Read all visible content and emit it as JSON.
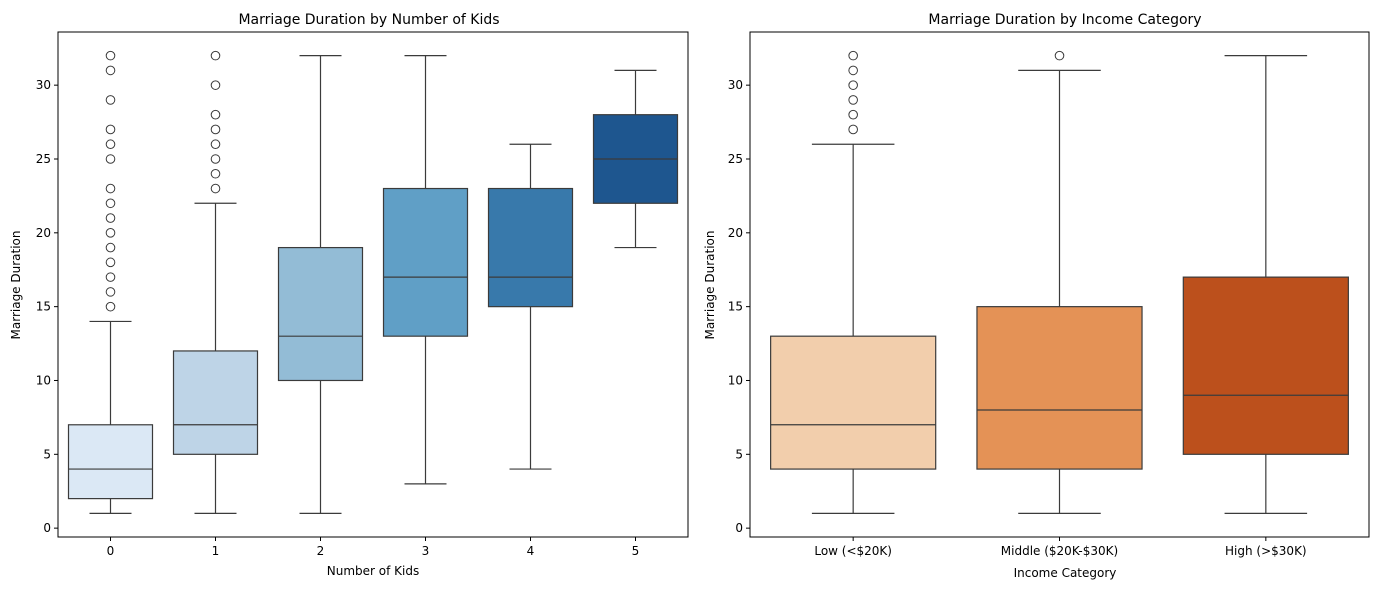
{
  "chart_data": [
    {
      "type": "box",
      "title": "Marriage Duration by Number of Kids",
      "xlabel": "Number of Kids",
      "ylabel": "Marriage Duration",
      "ylim": [
        -0.6,
        33.6
      ],
      "yticks": [
        0,
        5,
        10,
        15,
        20,
        25,
        30
      ],
      "categories": [
        "0",
        "1",
        "2",
        "3",
        "4",
        "5"
      ],
      "boxes": [
        {
          "whislo": 1,
          "q1": 2,
          "med": 4,
          "q3": 7,
          "whishi": 14,
          "fliers": [
            15,
            16,
            17,
            18,
            19,
            20,
            21,
            22,
            23,
            25,
            26,
            27,
            29,
            31,
            32
          ],
          "color": "#dbe8f5"
        },
        {
          "whislo": 1,
          "q1": 5,
          "med": 7,
          "q3": 12,
          "whishi": 22,
          "fliers": [
            23,
            24,
            25,
            26,
            27,
            28,
            30,
            32
          ],
          "color": "#bed4e7"
        },
        {
          "whislo": 1,
          "q1": 10,
          "med": 13,
          "q3": 19,
          "whishi": 32,
          "fliers": [],
          "color": "#93bcd6"
        },
        {
          "whislo": 3,
          "q1": 13,
          "med": 17,
          "q3": 23,
          "whishi": 32,
          "fliers": [],
          "color": "#609fc6"
        },
        {
          "whislo": 4,
          "q1": 15,
          "med": 17,
          "q3": 23,
          "whishi": 26,
          "fliers": [],
          "color": "#3879ab"
        },
        {
          "whislo": 19,
          "q1": 22,
          "med": 25,
          "q3": 28,
          "whishi": 31,
          "fliers": [],
          "color": "#1e568f"
        }
      ]
    },
    {
      "type": "box",
      "title": "Marriage Duration by Income Category",
      "xlabel": "Income Category",
      "ylabel": "Marriage Duration",
      "ylim": [
        -0.6,
        33.6
      ],
      "yticks": [
        0,
        5,
        10,
        15,
        20,
        25,
        30
      ],
      "categories": [
        "Low (<$20K)",
        "Middle ($20K-$30K)",
        "High (>$30K)"
      ],
      "boxes": [
        {
          "whislo": 1,
          "q1": 4,
          "med": 7,
          "q3": 13,
          "whishi": 26,
          "fliers": [
            27,
            28,
            29,
            30,
            31,
            32
          ],
          "color": "#f2ceac"
        },
        {
          "whislo": 1,
          "q1": 4,
          "med": 8,
          "q3": 15,
          "whishi": 31,
          "fliers": [
            32
          ],
          "color": "#e49256"
        },
        {
          "whislo": 1,
          "q1": 5,
          "med": 9,
          "q3": 17,
          "whishi": 32,
          "fliers": [],
          "color": "#bc501c"
        }
      ]
    }
  ]
}
